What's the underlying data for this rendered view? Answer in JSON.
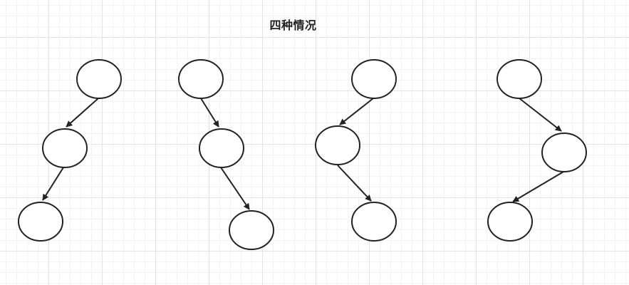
{
  "title": "四种情况",
  "colors": {
    "stroke": "#222222",
    "grid": "#e3e3e3"
  }
}
